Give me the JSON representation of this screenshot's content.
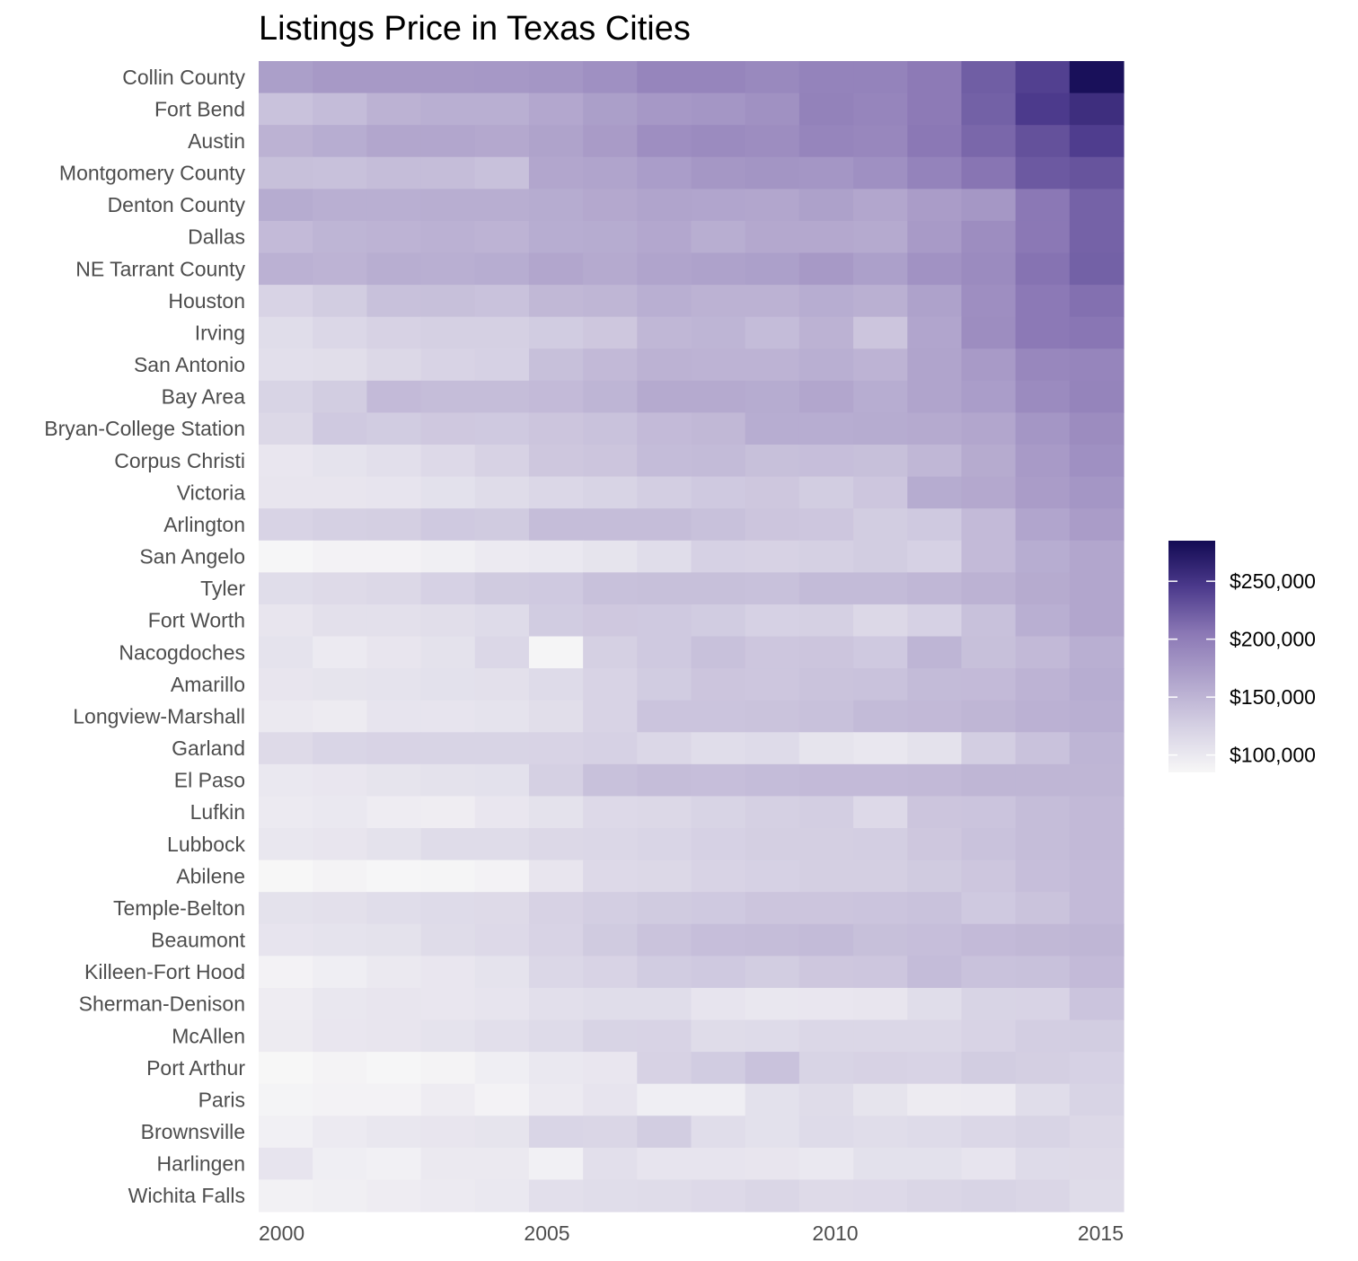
{
  "chart_data": {
    "type": "heatmap",
    "title": "Listings Price in Texas Cities",
    "x": [
      2000,
      2001,
      2002,
      2003,
      2004,
      2005,
      2006,
      2007,
      2008,
      2009,
      2010,
      2011,
      2012,
      2013,
      2014,
      2015
    ],
    "x_tick_labels": [
      "2000",
      "2005",
      "2010",
      "2015"
    ],
    "x_tick_values": [
      2000,
      2005,
      2010,
      2015
    ],
    "y": [
      "Collin County",
      "Fort Bend",
      "Austin",
      "Montgomery County",
      "Denton County",
      "Dallas",
      "NE Tarrant County",
      "Houston",
      "Irving",
      "San Antonio",
      "Bay Area",
      "Bryan-College Station",
      "Corpus Christi",
      "Victoria",
      "Arlington",
      "San Angelo",
      "Tyler",
      "Fort Worth",
      "Nacogdoches",
      "Amarillo",
      "Longview-Marshall",
      "Garland",
      "El Paso",
      "Lufkin",
      "Lubbock",
      "Abilene",
      "Temple-Belton",
      "Beaumont",
      "Killeen-Fort Hood",
      "Sherman-Denison",
      "McAllen",
      "Port Arthur",
      "Paris",
      "Brownsville",
      "Harlingen",
      "Wichita Falls"
    ],
    "values": [
      [
        170000,
        175000,
        175000,
        175000,
        176000,
        178000,
        183000,
        193000,
        193000,
        190000,
        195000,
        195000,
        203000,
        222000,
        241000,
        280000
      ],
      [
        138000,
        143000,
        152000,
        155000,
        155000,
        162000,
        170000,
        176000,
        178000,
        182000,
        196000,
        193000,
        203000,
        220000,
        245000,
        255000
      ],
      [
        152000,
        157000,
        163000,
        163000,
        161000,
        166000,
        173000,
        185000,
        188000,
        186000,
        193000,
        191000,
        205000,
        216000,
        230000,
        243000
      ],
      [
        140000,
        139000,
        142000,
        142000,
        139000,
        163000,
        165000,
        171000,
        177000,
        179000,
        178000,
        183000,
        195000,
        207000,
        225000,
        228000
      ],
      [
        158000,
        155000,
        155000,
        156000,
        156000,
        158000,
        161000,
        165000,
        164000,
        163000,
        168000,
        163000,
        172000,
        177000,
        205000,
        219000
      ],
      [
        145000,
        150000,
        151000,
        153000,
        151000,
        157000,
        158000,
        162000,
        156000,
        161000,
        161000,
        160000,
        174000,
        186000,
        205000,
        219000
      ],
      [
        153000,
        151000,
        156000,
        155000,
        157000,
        163000,
        160000,
        165000,
        167000,
        169000,
        175000,
        169000,
        181000,
        188000,
        208000,
        220000
      ],
      [
        122000,
        128000,
        139000,
        140000,
        138000,
        147000,
        149000,
        155000,
        152000,
        152000,
        157000,
        154000,
        167000,
        185000,
        204000,
        210000
      ],
      [
        112000,
        118000,
        123000,
        125000,
        125000,
        129000,
        133000,
        148000,
        150000,
        143000,
        152000,
        135000,
        164000,
        186000,
        204000,
        206000
      ],
      [
        110000,
        111000,
        117000,
        122000,
        124000,
        140000,
        146000,
        152000,
        151000,
        151000,
        155000,
        151000,
        165000,
        174000,
        191000,
        193000
      ],
      [
        121000,
        128000,
        145000,
        142000,
        142000,
        145000,
        150000,
        160000,
        160000,
        158000,
        163000,
        157000,
        165000,
        171000,
        188000,
        194000
      ],
      [
        117000,
        131000,
        129000,
        132000,
        131000,
        135000,
        138000,
        145000,
        147000,
        157000,
        157000,
        158000,
        160000,
        163000,
        178000,
        187000
      ],
      [
        102000,
        106000,
        110000,
        116000,
        123000,
        133000,
        135000,
        143000,
        144000,
        140000,
        141000,
        140000,
        148000,
        159000,
        174000,
        183000
      ],
      [
        103000,
        103000,
        104000,
        108000,
        113000,
        118000,
        121000,
        127000,
        131000,
        133000,
        128000,
        134000,
        158000,
        161000,
        172000,
        178000
      ],
      [
        122000,
        125000,
        126000,
        131000,
        130000,
        142000,
        142000,
        142000,
        139000,
        135000,
        134000,
        128000,
        131000,
        145000,
        164000,
        172000
      ],
      [
        86000,
        90000,
        90000,
        93000,
        98000,
        100000,
        105000,
        112000,
        124000,
        123000,
        125000,
        128000,
        124000,
        145000,
        157000,
        163000
      ],
      [
        112000,
        115000,
        117000,
        124000,
        130000,
        131000,
        139000,
        140000,
        140000,
        139000,
        144000,
        144000,
        148000,
        152000,
        159000,
        163000
      ],
      [
        103000,
        109000,
        109000,
        111000,
        114000,
        129000,
        132000,
        131000,
        129000,
        124000,
        125000,
        117000,
        124000,
        139000,
        155000,
        163000
      ],
      [
        106000,
        98000,
        103000,
        107000,
        118000,
        87000,
        125000,
        131000,
        139000,
        134000,
        135000,
        131000,
        150000,
        140000,
        146000,
        155000
      ],
      [
        103000,
        105000,
        106000,
        108000,
        109000,
        114000,
        122000,
        129000,
        135000,
        134000,
        137000,
        138000,
        144000,
        145000,
        151000,
        157000
      ],
      [
        99000,
        97000,
        104000,
        104000,
        106000,
        111000,
        122000,
        136000,
        136000,
        137000,
        139000,
        144000,
        146000,
        149000,
        153000,
        155000
      ],
      [
        115000,
        120000,
        122000,
        121000,
        121000,
        122000,
        124000,
        118000,
        112000,
        114000,
        105000,
        101000,
        107000,
        127000,
        138000,
        150000
      ],
      [
        100000,
        102000,
        105000,
        107000,
        108000,
        125000,
        139000,
        142000,
        141000,
        143000,
        145000,
        145000,
        146000,
        149000,
        149000,
        149000
      ],
      [
        98000,
        100000,
        96000,
        95000,
        102000,
        107000,
        116000,
        117000,
        121000,
        125000,
        127000,
        116000,
        135000,
        136000,
        142000,
        146000
      ],
      [
        101000,
        103000,
        107000,
        113000,
        113000,
        117000,
        118000,
        120000,
        124000,
        126000,
        126000,
        127000,
        133000,
        138000,
        142000,
        146000
      ],
      [
        84000,
        89000,
        86000,
        87000,
        90000,
        103000,
        116000,
        117000,
        122000,
        124000,
        126000,
        126000,
        130000,
        134000,
        141000,
        145000
      ],
      [
        107000,
        109000,
        112000,
        114000,
        115000,
        123000,
        127000,
        130000,
        131000,
        135000,
        135000,
        136000,
        138000,
        131000,
        137000,
        145000
      ],
      [
        104000,
        106000,
        107000,
        113000,
        116000,
        122000,
        130000,
        137000,
        141000,
        142000,
        144000,
        140000,
        141000,
        145000,
        147000,
        149000
      ],
      [
        90000,
        94000,
        99000,
        102000,
        106000,
        118000,
        122000,
        129000,
        131000,
        128000,
        133000,
        134000,
        143000,
        138000,
        139000,
        145000
      ],
      [
        96000,
        101000,
        103000,
        102000,
        104000,
        110000,
        112000,
        112000,
        104000,
        101000,
        102000,
        103000,
        112000,
        121000,
        122000,
        136000
      ],
      [
        97000,
        102000,
        103000,
        106000,
        110000,
        114000,
        121000,
        122000,
        113000,
        114000,
        118000,
        118000,
        118000,
        122000,
        127000,
        128000
      ],
      [
        82000,
        89000,
        86000,
        89000,
        94000,
        100000,
        102000,
        123000,
        129000,
        138000,
        121000,
        123000,
        122000,
        128000,
        126000,
        124000
      ],
      [
        88000,
        90000,
        90000,
        96000,
        90000,
        98000,
        104000,
        94000,
        94000,
        108000,
        113000,
        105000,
        97000,
        98000,
        112000,
        121000
      ],
      [
        92000,
        98000,
        101000,
        103000,
        105000,
        120000,
        119000,
        128000,
        112000,
        108000,
        114000,
        112000,
        114000,
        118000,
        121000,
        117000
      ],
      [
        104000,
        94000,
        92000,
        99000,
        99000,
        92000,
        110000,
        104000,
        104000,
        103000,
        100000,
        108000,
        108000,
        104000,
        114000,
        115000
      ],
      [
        91000,
        93000,
        96000,
        98000,
        100000,
        110000,
        112000,
        113000,
        116000,
        119000,
        115000,
        116000,
        119000,
        121000,
        119000,
        113000
      ]
    ],
    "colorbar": {
      "min": 85000,
      "max": 285000,
      "ticks": [
        100000,
        150000,
        200000,
        250000
      ],
      "tick_labels": [
        "$100,000",
        "$150,000",
        "$200,000",
        "$250,000"
      ],
      "low_color": "#f7f7f7",
      "high_color": "#120a53"
    },
    "xlabel": "",
    "ylabel": "",
    "grid": false,
    "legend_position": "right"
  }
}
